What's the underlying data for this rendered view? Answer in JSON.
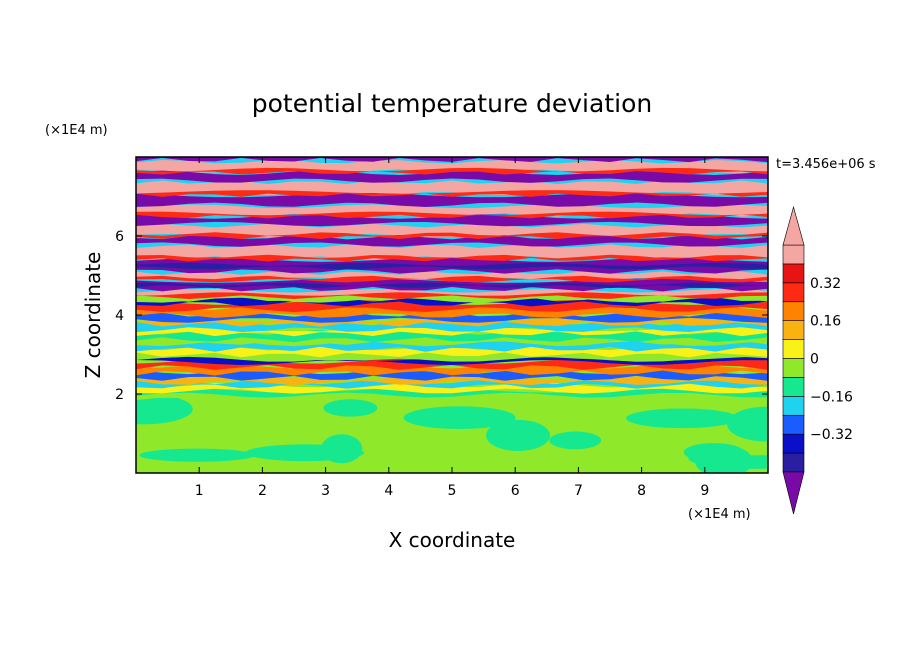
{
  "chart_data": {
    "type": "heatmap",
    "title": "potential temperature deviation",
    "xlabel": "X coordinate",
    "ylabel": "Z coordinate",
    "x_unit": "(×1E4 m)",
    "y_unit": "(×1E4 m)",
    "time_label": "t=3.456e+06 s",
    "xlim": [
      0,
      10
    ],
    "ylim": [
      0,
      8
    ],
    "x_ticks": [
      "1",
      "2",
      "3",
      "4",
      "5",
      "6",
      "7",
      "8",
      "9"
    ],
    "y_ticks": [
      "2",
      "4",
      "6"
    ],
    "colorbar": {
      "levels": [
        -0.48,
        -0.4,
        -0.32,
        -0.24,
        -0.16,
        -0.08,
        0,
        0.08,
        0.16,
        0.24,
        0.32,
        0.4,
        0.48
      ],
      "tick_labels": [
        "0.32",
        "0.16",
        "0",
        "−0.16",
        "−0.32"
      ],
      "colors": [
        "#7a0aa8",
        "#2a1fa0",
        "#0a10c8",
        "#1a5cff",
        "#1ed2f0",
        "#16e890",
        "#8fe82a",
        "#f8f218",
        "#f8b310",
        "#ff8200",
        "#ff2a14",
        "#e81414",
        "#f4a6a2"
      ]
    },
    "regions": [
      {
        "z_range": [
          0,
          1.9
        ],
        "character": "smooth green/teal field, values near 0 to 0.08"
      },
      {
        "z_range": [
          1.9,
          4.5
        ],
        "character": "turbulent layered band, values -0.24 to 0.32"
      },
      {
        "z_range": [
          4.5,
          8
        ],
        "character": "alternating strong layers, values below -0.48 and above 0.48"
      }
    ]
  }
}
